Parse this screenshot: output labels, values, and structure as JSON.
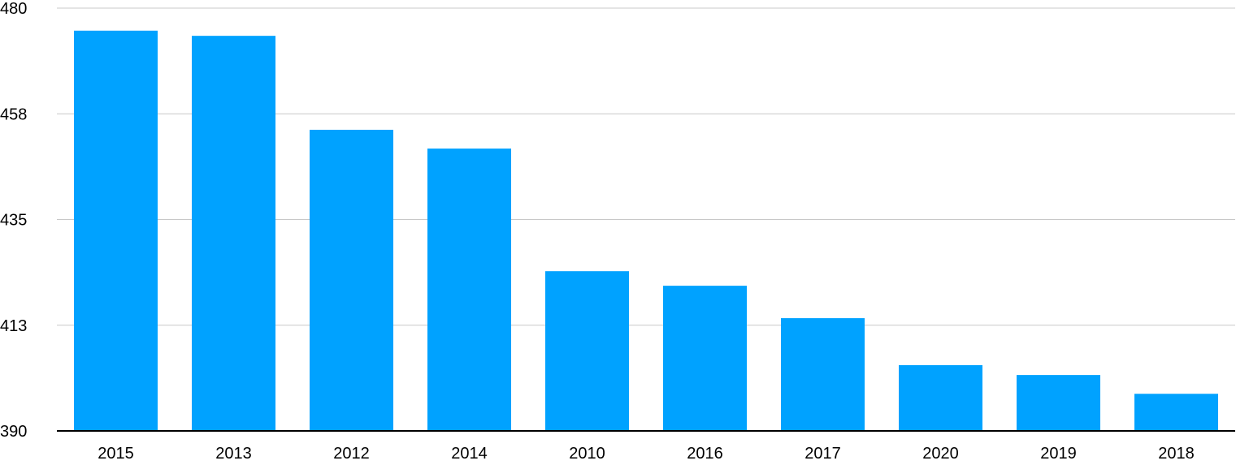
{
  "chart_data": {
    "type": "bar",
    "title": "",
    "xlabel": "",
    "ylabel": "",
    "categories": [
      "2015",
      "2013",
      "2012",
      "2014",
      "2010",
      "2016",
      "2017",
      "2020",
      "2019",
      "2018"
    ],
    "values": [
      475.2,
      474.1,
      454.1,
      450.1,
      424.0,
      420.9,
      414.0,
      404.0,
      401.9,
      397.9
    ],
    "ylim": [
      390,
      480
    ],
    "yticks": [
      390,
      412.5,
      435,
      457.5,
      480
    ],
    "ytick_labels": [
      "390",
      "413",
      "435",
      "458",
      "480"
    ],
    "grid": true,
    "legend": "none",
    "bar_color": "#00a2ff"
  }
}
